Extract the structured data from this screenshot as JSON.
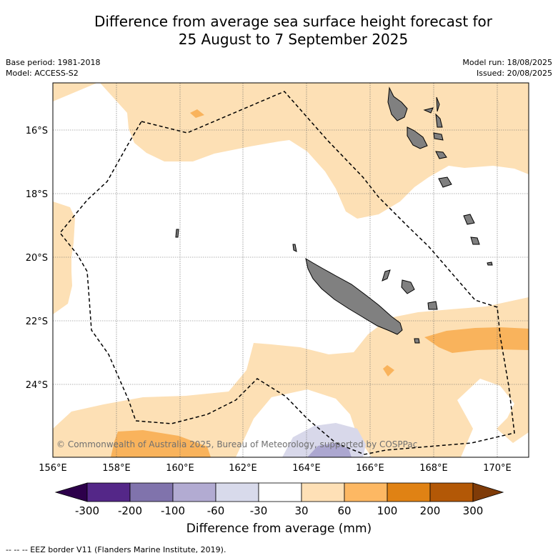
{
  "title_line1": "Difference from average sea surface height forecast for",
  "title_line2": "25 August to 7 September 2025",
  "meta": {
    "base_period": "Base period: 1981-2018",
    "model": "Model: ACCESS-S2",
    "model_run": "Model run: 18/08/2025",
    "issued": "Issued: 20/08/2025"
  },
  "map": {
    "lat_labels": [
      "16°S",
      "18°S",
      "20°S",
      "22°S",
      "24°S"
    ],
    "lon_labels": [
      "156°E",
      "158°E",
      "160°E",
      "162°E",
      "164°E",
      "166°E",
      "168°E",
      "170°E"
    ],
    "copyright": "© Commonwealth of Australia 2025, Bureau of Meteorology, supported by COSPPac",
    "colors": {
      "land": "#808080",
      "pos_30_60": "#fde0b5",
      "pos_60_100": "#f9b35c",
      "neg_60_30": "#d8d8ea",
      "neg_100_60": "#aca7d0",
      "eez_line": "#000000",
      "grid": "#666666"
    }
  },
  "colorbar": {
    "ticks": [
      "-300",
      "-200",
      "-100",
      "-60",
      "-30",
      "30",
      "60",
      "100",
      "200",
      "300"
    ],
    "colors": [
      "#2d004b",
      "#542788",
      "#8073ac",
      "#b2abd2",
      "#d8daeb",
      "#ffffff",
      "#fee0b6",
      "#fdb863",
      "#e08214",
      "#b35806",
      "#7f3b08"
    ],
    "label": "Difference from average (mm)"
  },
  "footer": "-- -- -- EEZ border V11 (Flanders Marine Institute, 2019)."
}
